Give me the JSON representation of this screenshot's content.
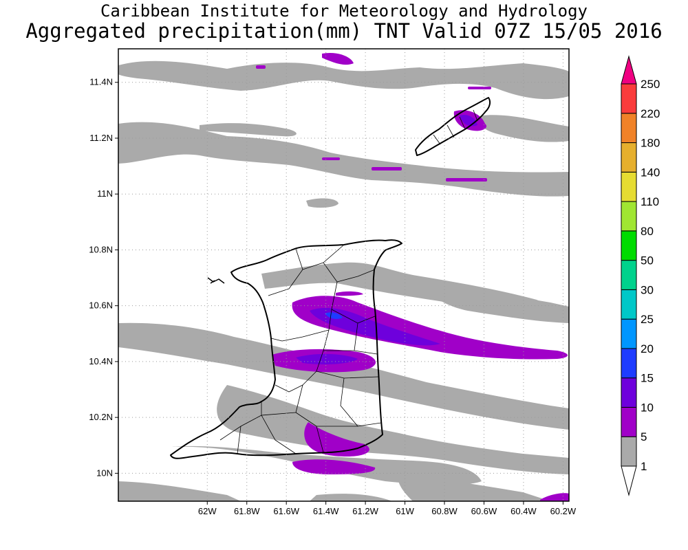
{
  "title": {
    "line1": "Caribbean Institute for Meteorology and Hydrology",
    "line2": "Aggregated precipitation(mm) TNT Valid 07Z 15/05 2016"
  },
  "map": {
    "lon_range": [
      -62.45,
      -60.17
    ],
    "lat_range": [
      9.9,
      11.52
    ],
    "lat_ticks": [
      {
        "value": 11.4,
        "label": "11.4N"
      },
      {
        "value": 11.2,
        "label": "11.2N"
      },
      {
        "value": 11.0,
        "label": "11N"
      },
      {
        "value": 10.8,
        "label": "10.8N"
      },
      {
        "value": 10.6,
        "label": "10.6N"
      },
      {
        "value": 10.4,
        "label": "10.4N"
      },
      {
        "value": 10.2,
        "label": "10.2N"
      },
      {
        "value": 10.0,
        "label": "10N"
      }
    ],
    "lon_ticks": [
      {
        "value": -62.0,
        "label": "62W"
      },
      {
        "value": -61.8,
        "label": "61.8W"
      },
      {
        "value": -61.6,
        "label": "61.6W"
      },
      {
        "value": -61.4,
        "label": "61.4W"
      },
      {
        "value": -61.2,
        "label": "61.2W"
      },
      {
        "value": -61.0,
        "label": "61W"
      },
      {
        "value": -60.8,
        "label": "60.8W"
      },
      {
        "value": -60.6,
        "label": "60.6W"
      },
      {
        "value": -60.4,
        "label": "60.4W"
      },
      {
        "value": -60.2,
        "label": "60.2W"
      }
    ],
    "gridlines": true
  },
  "colorbar": {
    "levels": [
      {
        "label": "1",
        "color": "#aaaaaa"
      },
      {
        "label": "5",
        "color": "#a000c8"
      },
      {
        "label": "10",
        "color": "#6e00dc"
      },
      {
        "label": "15",
        "color": "#1e3cff"
      },
      {
        "label": "20",
        "color": "#0096ff"
      },
      {
        "label": "25",
        "color": "#00c8c8"
      },
      {
        "label": "30",
        "color": "#00d28c"
      },
      {
        "label": "50",
        "color": "#00dc00"
      },
      {
        "label": "80",
        "color": "#a0e632"
      },
      {
        "label": "110",
        "color": "#e6dc32"
      },
      {
        "label": "140",
        "color": "#e6af2d"
      },
      {
        "label": "180",
        "color": "#f08228"
      },
      {
        "label": "220",
        "color": "#fa3c3c"
      },
      {
        "label": "250",
        "color": "#f00082"
      }
    ],
    "low_color": "#ffffff",
    "high_color": "#f00082"
  },
  "colors": {
    "rain_1_5": "#aaaaaa",
    "rain_5_10": "#a000c8",
    "rain_10_15": "#6e00dc",
    "rain_15_20": "#1e3cff",
    "coastline": "#000000"
  }
}
